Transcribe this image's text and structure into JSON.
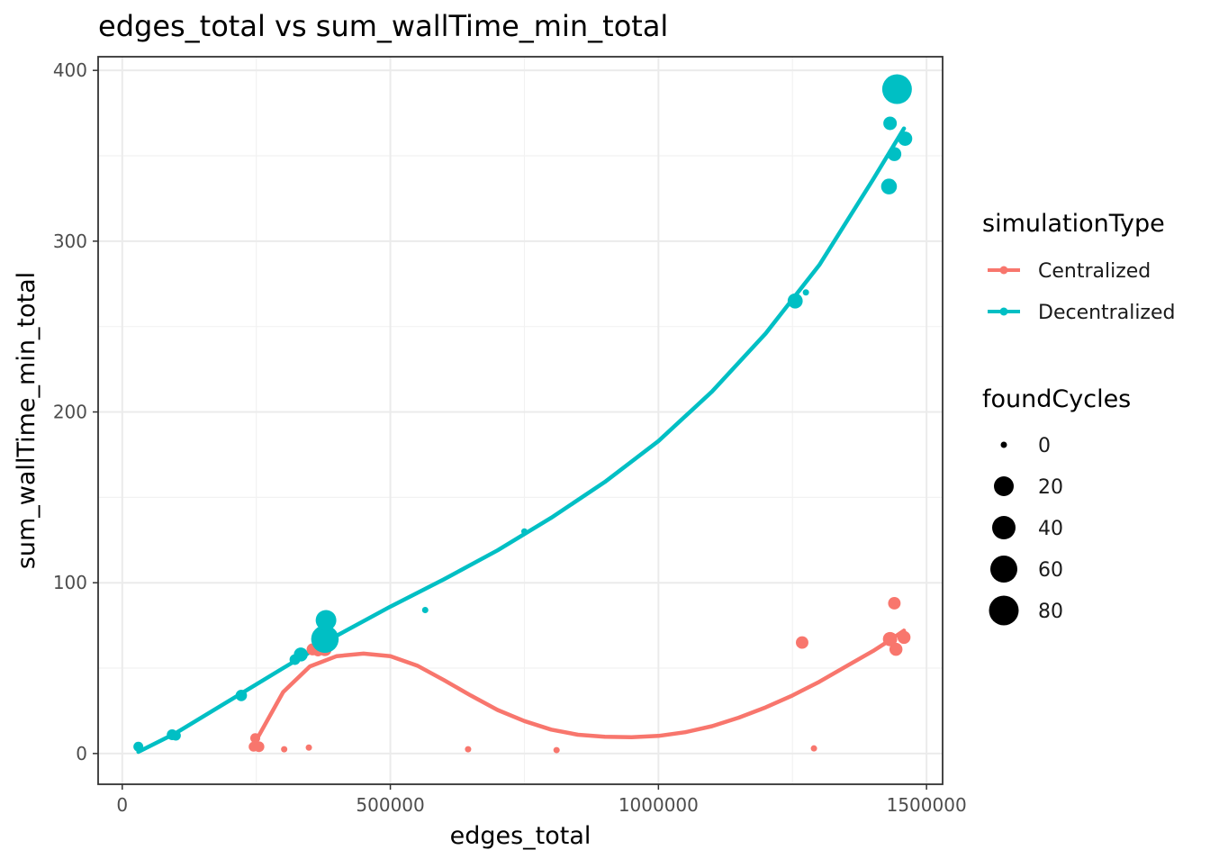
{
  "chart_data": {
    "type": "scatter",
    "title": "edges_total  vs  sum_wallTime_min_total",
    "xlabel": "edges_total",
    "ylabel": "sum_wallTime_min_total",
    "xlim": [
      -45000,
      1530000
    ],
    "ylim": [
      -18,
      408
    ],
    "x_ticks": [
      0,
      500000,
      1000000,
      1500000
    ],
    "x_tick_labels": [
      "0",
      "500000",
      "1000000",
      "1500000"
    ],
    "y_ticks": [
      0,
      100,
      200,
      300,
      400
    ],
    "y_tick_labels": [
      "0",
      "100",
      "200",
      "300",
      "400"
    ],
    "grid": true,
    "legend_position": "right",
    "color_legend": {
      "title": "simulationType",
      "entries": [
        {
          "label": "Centralized",
          "color": "#F8766D"
        },
        {
          "label": "Decentralized",
          "color": "#00BFC4"
        }
      ]
    },
    "size_legend": {
      "title": "foundCycles",
      "values": [
        0,
        20,
        40,
        60,
        80
      ],
      "labels": [
        "0",
        "20",
        "40",
        "60",
        "80"
      ]
    },
    "series": [
      {
        "name": "Centralized",
        "color": "#F8766D",
        "points": [
          {
            "x": 245000,
            "y": 4,
            "size": 2
          },
          {
            "x": 248000,
            "y": 9,
            "size": 2
          },
          {
            "x": 255000,
            "y": 4,
            "size": 3
          },
          {
            "x": 302000,
            "y": 2.5,
            "size": 0
          },
          {
            "x": 348000,
            "y": 3.5,
            "size": 0
          },
          {
            "x": 355000,
            "y": 61,
            "size": 5
          },
          {
            "x": 365000,
            "y": 60,
            "size": 3
          },
          {
            "x": 378000,
            "y": 61,
            "size": 8
          },
          {
            "x": 645000,
            "y": 2.5,
            "size": 0
          },
          {
            "x": 810000,
            "y": 2,
            "size": 0
          },
          {
            "x": 1268000,
            "y": 65,
            "size": 6
          },
          {
            "x": 1290000,
            "y": 3,
            "size": 0
          },
          {
            "x": 1432000,
            "y": 67,
            "size": 10
          },
          {
            "x": 1440000,
            "y": 88,
            "size": 6
          },
          {
            "x": 1443000,
            "y": 61,
            "size": 7
          },
          {
            "x": 1458000,
            "y": 68,
            "size": 7
          }
        ],
        "trend": [
          [
            252000,
            9
          ],
          [
            300000,
            36
          ],
          [
            350000,
            51
          ],
          [
            400000,
            57
          ],
          [
            450000,
            58.5
          ],
          [
            500000,
            57
          ],
          [
            550000,
            51.5
          ],
          [
            600000,
            43
          ],
          [
            650000,
            34
          ],
          [
            700000,
            25.5
          ],
          [
            750000,
            19
          ],
          [
            800000,
            14
          ],
          [
            850000,
            11
          ],
          [
            900000,
            9.8
          ],
          [
            950000,
            9.5
          ],
          [
            1000000,
            10.3
          ],
          [
            1050000,
            12.5
          ],
          [
            1100000,
            16
          ],
          [
            1150000,
            21
          ],
          [
            1200000,
            27
          ],
          [
            1250000,
            34
          ],
          [
            1300000,
            42
          ],
          [
            1350000,
            51
          ],
          [
            1400000,
            60
          ],
          [
            1430000,
            66
          ],
          [
            1458000,
            72
          ]
        ]
      },
      {
        "name": "Decentralized",
        "color": "#00BFC4",
        "points": [
          {
            "x": 30000,
            "y": 4,
            "size": 2
          },
          {
            "x": 93000,
            "y": 11,
            "size": 3
          },
          {
            "x": 100000,
            "y": 10.5,
            "size": 2
          },
          {
            "x": 222000,
            "y": 34,
            "size": 4
          },
          {
            "x": 322000,
            "y": 55,
            "size": 3
          },
          {
            "x": 333000,
            "y": 58,
            "size": 9
          },
          {
            "x": 378000,
            "y": 67,
            "size": 70
          },
          {
            "x": 380000,
            "y": 78,
            "size": 32
          },
          {
            "x": 565000,
            "y": 84,
            "size": 0
          },
          {
            "x": 750000,
            "y": 130,
            "size": 0
          },
          {
            "x": 1255000,
            "y": 265,
            "size": 12
          },
          {
            "x": 1275000,
            "y": 270,
            "size": 0
          },
          {
            "x": 1430000,
            "y": 332,
            "size": 14
          },
          {
            "x": 1432000,
            "y": 369,
            "size": 8
          },
          {
            "x": 1440000,
            "y": 351,
            "size": 9
          },
          {
            "x": 1445000,
            "y": 389,
            "size": 85
          },
          {
            "x": 1460000,
            "y": 360,
            "size": 10
          }
        ],
        "trend": [
          [
            30000,
            1
          ],
          [
            100000,
            12
          ],
          [
            200000,
            31
          ],
          [
            300000,
            50
          ],
          [
            375000,
            64
          ],
          [
            400000,
            69
          ],
          [
            500000,
            86
          ],
          [
            600000,
            102
          ],
          [
            700000,
            119
          ],
          [
            800000,
            138
          ],
          [
            900000,
            159
          ],
          [
            1000000,
            183
          ],
          [
            1100000,
            212
          ],
          [
            1200000,
            246
          ],
          [
            1300000,
            286
          ],
          [
            1400000,
            336
          ],
          [
            1458000,
            366
          ]
        ]
      }
    ]
  }
}
